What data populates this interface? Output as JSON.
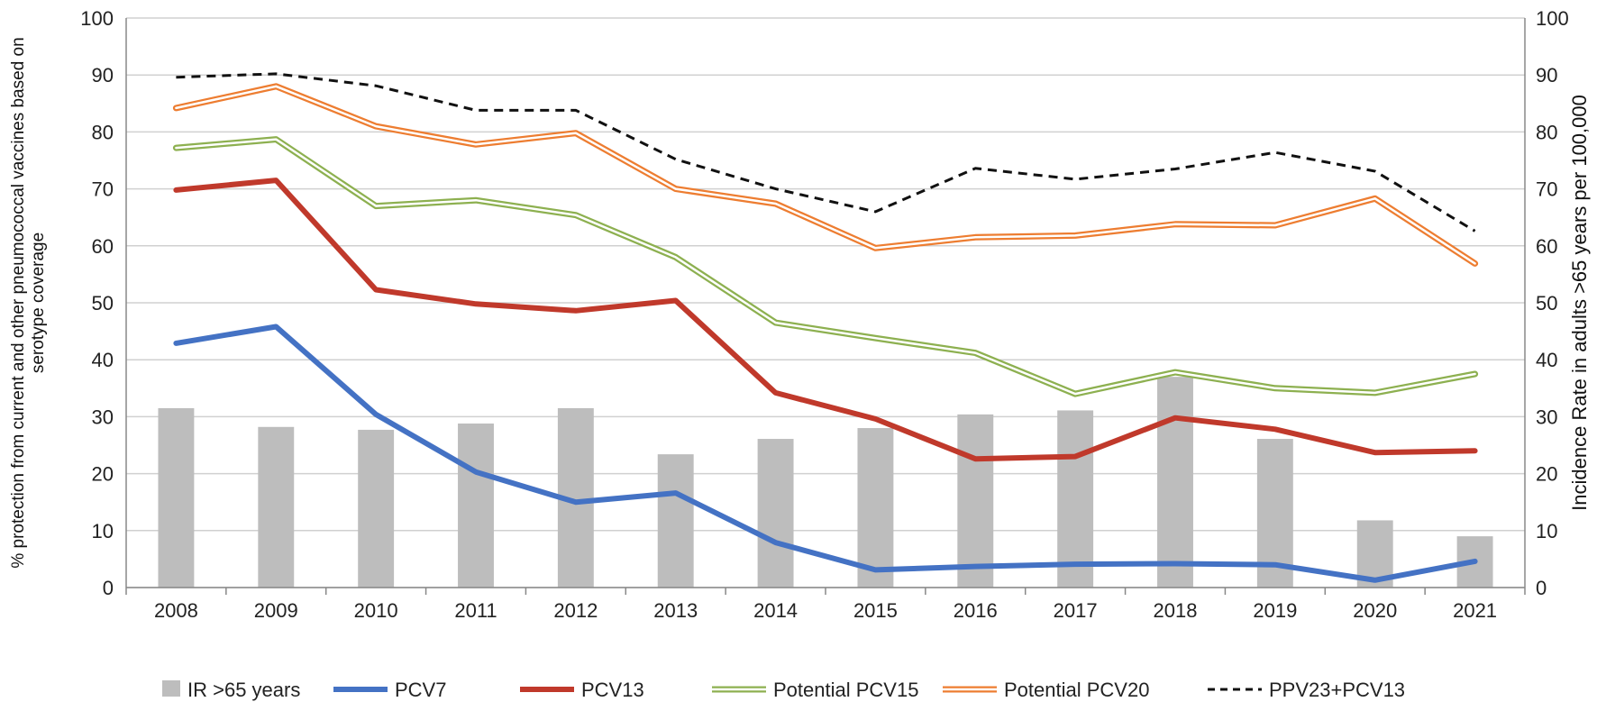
{
  "chart_data": {
    "type": "bar+line",
    "categories": [
      "2008",
      "2009",
      "2010",
      "2011",
      "2012",
      "2013",
      "2014",
      "2015",
      "2016",
      "2017",
      "2018",
      "2019",
      "2020",
      "2021"
    ],
    "y_left": {
      "label": "% protection from current and other pneumococcal vaccines based on serotype coverage",
      "min": 0,
      "max": 100,
      "ticks": [
        "0",
        "10",
        "20",
        "30",
        "40",
        "50",
        "60",
        "70",
        "80",
        "90",
        "100"
      ]
    },
    "y_right": {
      "label": "Incidence Rate in adults >65 years per 100,000",
      "min": 0,
      "max": 100,
      "ticks": [
        "0",
        "10",
        "20",
        "30",
        "40",
        "50",
        "60",
        "70",
        "80",
        "90",
        "100"
      ]
    },
    "bars": {
      "name": "IR >65  years",
      "color": "#bdbdbd",
      "axis": "right",
      "values": [
        31.5,
        28.2,
        27.7,
        28.8,
        31.5,
        23.4,
        26.1,
        28.0,
        30.4,
        31.1,
        37.0,
        26.1,
        11.8,
        9.0
      ]
    },
    "series": [
      {
        "name": "PCV7",
        "style": "solid-thick",
        "color": "#4472c4",
        "values": [
          42.9,
          45.8,
          30.4,
          20.3,
          15.0,
          16.6,
          7.9,
          3.1,
          3.7,
          4.1,
          4.2,
          4.0,
          1.3,
          4.6
        ]
      },
      {
        "name": "PCV13",
        "style": "solid-thick",
        "color": "#c0392b",
        "values": [
          69.8,
          71.5,
          52.3,
          49.8,
          48.6,
          50.4,
          34.2,
          29.6,
          22.6,
          23.0,
          29.8,
          27.8,
          23.7,
          24.0
        ]
      },
      {
        "name": "Potential PCV15",
        "style": "double",
        "color": "#8db050",
        "values": [
          77.2,
          78.7,
          67.0,
          68.0,
          65.4,
          58.0,
          46.5,
          43.8,
          41.2,
          34.0,
          37.8,
          35.0,
          34.2,
          37.5
        ]
      },
      {
        "name": "Potential PCV20",
        "style": "double",
        "color": "#ed7d31",
        "values": [
          84.2,
          88.0,
          81.0,
          77.8,
          79.8,
          70.0,
          67.4,
          59.6,
          61.5,
          61.8,
          63.8,
          63.6,
          68.3,
          56.9
        ]
      },
      {
        "name": "PPV23+PCV13",
        "style": "dashed",
        "color": "#111111",
        "values": [
          89.6,
          90.2,
          88.1,
          83.8,
          83.8,
          75.2,
          70.0,
          66.0,
          73.6,
          71.7,
          73.5,
          76.4,
          73.1,
          62.6
        ]
      }
    ],
    "legend": [
      {
        "key": "bar",
        "label": "IR >65  years",
        "color": "#bdbdbd"
      },
      {
        "key": "solid-thick",
        "label": "PCV7",
        "color": "#4472c4"
      },
      {
        "key": "solid-thick",
        "label": "PCV13",
        "color": "#c0392b"
      },
      {
        "key": "double",
        "label": "Potential PCV15",
        "color": "#8db050"
      },
      {
        "key": "double",
        "label": "Potential PCV20",
        "color": "#ed7d31"
      },
      {
        "key": "dashed",
        "label": "PPV23+PCV13",
        "color": "#111111"
      }
    ],
    "legend_position": "bottom",
    "grid": true
  }
}
